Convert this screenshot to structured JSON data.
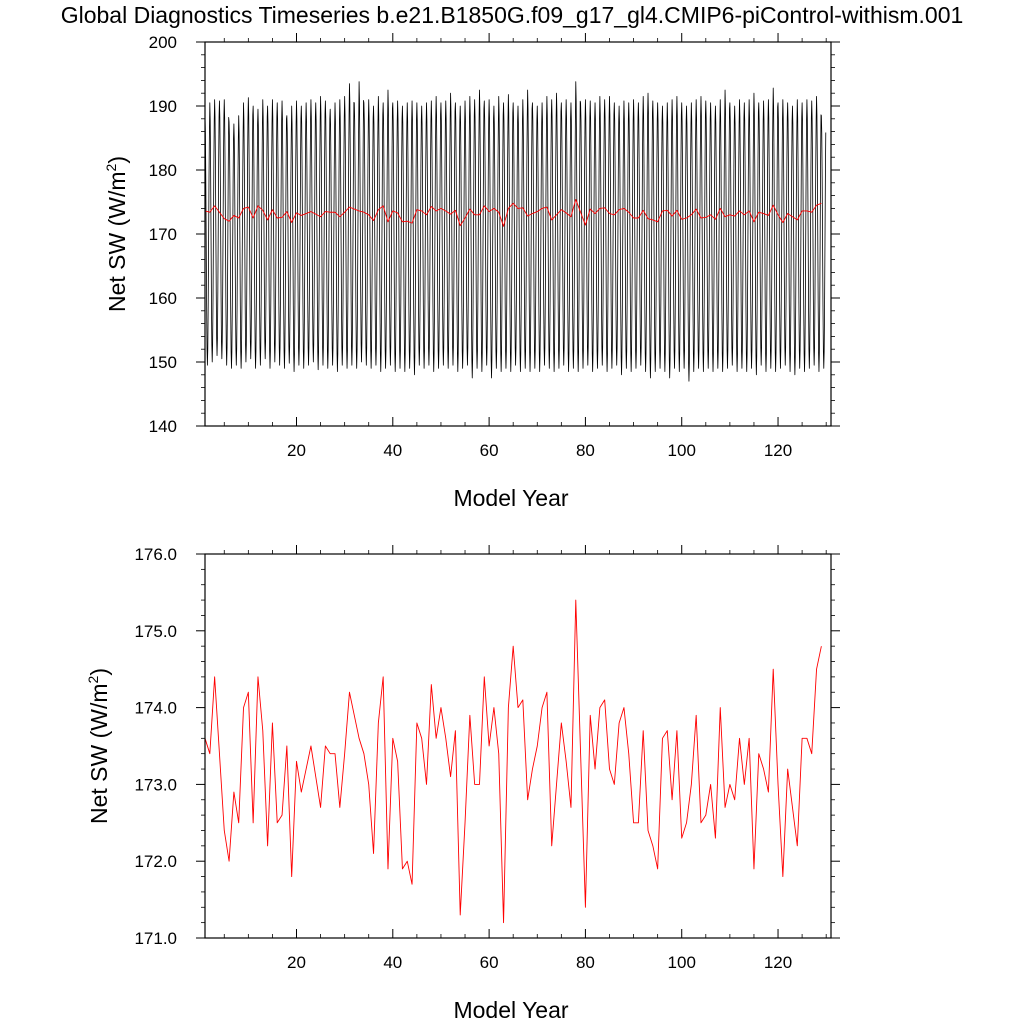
{
  "title": "Global Diagnostics Timeseries b.e21.B1850G.f09_g17_gl4.CMIP6-piControl-withism.001",
  "colors": {
    "monthly": "#000000",
    "annual": "#ff0000",
    "axis": "#000000"
  },
  "chart_data": [
    {
      "type": "line",
      "xlabel": "Model Year",
      "ylabel_main": "Net SW (W/m",
      "ylabel_sup": "2",
      "ylabel_close": ")",
      "xlim": [
        1,
        131
      ],
      "ylim": [
        140,
        200
      ],
      "xticks": [
        20,
        40,
        60,
        80,
        100,
        120
      ],
      "xtick_labels": [
        "20",
        "40",
        "60",
        "80",
        "100",
        "120"
      ],
      "yticks": [
        140,
        150,
        160,
        170,
        180,
        190,
        200
      ],
      "ytick_labels": [
        "140",
        "150",
        "160",
        "170",
        "180",
        "190",
        "200"
      ],
      "series": [
        {
          "kind": "monthly",
          "x_start": 1.0,
          "x_step": 0.0833333,
          "annual_peaks": [
            188.5,
            190.5,
            191.0,
            190.8,
            191.0,
            187.5,
            187.2,
            188.5,
            190.5,
            191.3,
            190.0,
            189.5,
            191.0,
            190.0,
            191.0,
            190.5,
            190.8,
            188.5,
            190.0,
            190.8,
            190.0,
            190.5,
            191.0,
            190.5,
            191.5,
            190.8,
            189.5,
            190.5,
            191.0,
            191.5,
            193.5,
            190.5,
            193.8,
            190.5,
            191.0,
            190.0,
            191.5,
            190.5,
            192.5,
            190.5,
            190.8,
            190.0,
            190.5,
            190.8,
            190.5,
            190.0,
            190.5,
            190.8,
            191.5,
            190.5,
            190.8,
            192.0,
            190.5,
            190.0,
            190.8,
            191.5,
            191.0,
            192.5,
            190.8,
            191.0,
            190.0,
            191.5,
            190.5,
            191.8,
            190.5,
            190.0,
            191.0,
            192.5,
            190.5,
            190.0,
            190.5,
            191.5,
            191.0,
            192.0,
            190.5,
            191.0,
            190.5,
            193.8,
            190.5,
            191.0,
            190.8,
            190.5,
            191.5,
            191.0,
            191.5,
            190.5,
            190.0,
            190.8,
            190.5,
            191.0,
            190.5,
            191.5,
            192.0,
            190.8,
            190.5,
            190.0,
            190.5,
            191.0,
            191.5,
            190.5,
            190.0,
            190.5,
            191.0,
            191.5,
            190.8,
            190.5,
            190.0,
            191.0,
            192.5,
            190.5,
            190.0,
            191.0,
            190.5,
            191.0,
            192.0,
            190.5,
            190.8,
            191.0,
            192.8,
            190.5,
            191.0,
            190.5,
            190.0,
            191.0,
            190.5,
            191.0,
            190.8,
            191.5,
            188.5
          ],
          "annual_troughs": [
            149.5,
            150.0,
            151.0,
            150.5,
            149.5,
            149.0,
            149.5,
            149.0,
            150.0,
            150.5,
            149.0,
            149.5,
            150.5,
            149.0,
            150.0,
            149.5,
            149.0,
            149.8,
            148.5,
            149.5,
            149.0,
            149.5,
            150.0,
            148.8,
            149.5,
            149.0,
            149.5,
            148.5,
            149.5,
            149.0,
            149.5,
            149.0,
            150.0,
            149.5,
            149.0,
            149.5,
            148.5,
            149.0,
            149.5,
            148.5,
            149.0,
            148.5,
            149.0,
            148.0,
            149.5,
            149.0,
            149.5,
            148.5,
            149.0,
            149.5,
            149.0,
            149.5,
            148.5,
            149.0,
            149.5,
            147.5,
            149.0,
            148.5,
            149.5,
            147.5,
            149.0,
            148.5,
            149.0,
            148.5,
            149.5,
            148.5,
            149.0,
            148.5,
            149.0,
            148.5,
            149.5,
            149.0,
            148.5,
            149.0,
            149.5,
            148.5,
            149.0,
            148.5,
            149.0,
            149.5,
            148.5,
            149.0,
            149.5,
            148.5,
            149.0,
            149.5,
            148.0,
            149.0,
            148.5,
            149.0,
            149.5,
            148.5,
            147.5,
            148.5,
            149.0,
            148.5,
            147.5,
            149.0,
            148.5,
            149.0,
            147.0,
            148.5,
            149.0,
            148.5,
            149.0,
            148.5,
            149.0,
            148.5,
            149.0,
            149.5,
            148.5,
            149.0,
            148.5,
            149.0,
            148.0,
            149.5,
            148.5,
            149.0,
            148.5,
            149.0,
            149.5,
            148.5,
            148.0,
            149.0,
            148.5,
            149.0,
            149.5,
            148.5,
            149.0,
            148.5,
            150.0
          ]
        },
        {
          "kind": "annual",
          "x_start": 1,
          "x_step": 1,
          "values": [
            173.6,
            173.4,
            174.4,
            173.4,
            172.4,
            172.0,
            172.9,
            172.5,
            174.0,
            174.2,
            172.5,
            174.4,
            173.7,
            172.2,
            173.8,
            172.5,
            172.6,
            173.5,
            171.8,
            173.3,
            172.9,
            173.2,
            173.5,
            173.1,
            172.7,
            173.5,
            173.4,
            173.4,
            172.7,
            173.4,
            174.2,
            173.9,
            173.6,
            173.4,
            173.0,
            172.1,
            173.8,
            174.4,
            171.9,
            173.6,
            173.3,
            171.9,
            172.0,
            171.7,
            173.8,
            173.6,
            173.0,
            174.3,
            173.6,
            174.0,
            173.6,
            173.1,
            173.7,
            171.3,
            172.5,
            173.9,
            173.0,
            173.0,
            174.4,
            173.5,
            174.0,
            173.4,
            171.2,
            174.0,
            174.8,
            174.0,
            174.1,
            172.8,
            173.2,
            173.5,
            174.0,
            174.2,
            172.2,
            173.0,
            173.8,
            173.3,
            172.7,
            175.4,
            173.4,
            171.4,
            173.9,
            173.2,
            174.0,
            174.1,
            173.2,
            173.0,
            173.8,
            174.0,
            173.4,
            172.5,
            172.5,
            173.7,
            172.4,
            172.2,
            171.9,
            173.6,
            173.7,
            172.8,
            173.7,
            172.3,
            172.5,
            173.0,
            173.9,
            172.5,
            172.6,
            173.0,
            172.3,
            174.0,
            172.7,
            173.0,
            172.8,
            173.6,
            173.0,
            173.6,
            171.9,
            173.4,
            173.2,
            172.9,
            174.5,
            173.0,
            171.8,
            173.2,
            172.7,
            172.2,
            173.6,
            173.6,
            173.4,
            174.5,
            174.8
          ]
        }
      ]
    },
    {
      "type": "line",
      "xlabel": "Model Year",
      "ylabel_main": "Net SW (W/m",
      "ylabel_sup": "2",
      "ylabel_close": ")",
      "xlim": [
        1,
        131
      ],
      "ylim": [
        171.0,
        176.0
      ],
      "xticks": [
        20,
        40,
        60,
        80,
        100,
        120
      ],
      "xtick_labels": [
        "20",
        "40",
        "60",
        "80",
        "100",
        "120"
      ],
      "yticks": [
        171,
        172,
        173,
        174,
        175,
        176
      ],
      "ytick_labels": [
        "171.0",
        "172.0",
        "173.0",
        "174.0",
        "175.0",
        "176.0"
      ],
      "series": [
        {
          "kind": "annual",
          "x_start": 1,
          "x_step": 1,
          "values": [
            173.6,
            173.4,
            174.4,
            173.4,
            172.4,
            172.0,
            172.9,
            172.5,
            174.0,
            174.2,
            172.5,
            174.4,
            173.7,
            172.2,
            173.8,
            172.5,
            172.6,
            173.5,
            171.8,
            173.3,
            172.9,
            173.2,
            173.5,
            173.1,
            172.7,
            173.5,
            173.4,
            173.4,
            172.7,
            173.4,
            174.2,
            173.9,
            173.6,
            173.4,
            173.0,
            172.1,
            173.8,
            174.4,
            171.9,
            173.6,
            173.3,
            171.9,
            172.0,
            171.7,
            173.8,
            173.6,
            173.0,
            174.3,
            173.6,
            174.0,
            173.6,
            173.1,
            173.7,
            171.3,
            172.5,
            173.9,
            173.0,
            173.0,
            174.4,
            173.5,
            174.0,
            173.4,
            171.2,
            174.0,
            174.8,
            174.0,
            174.1,
            172.8,
            173.2,
            173.5,
            174.0,
            174.2,
            172.2,
            173.0,
            173.8,
            173.3,
            172.7,
            175.4,
            173.4,
            171.4,
            173.9,
            173.2,
            174.0,
            174.1,
            173.2,
            173.0,
            173.8,
            174.0,
            173.4,
            172.5,
            172.5,
            173.7,
            172.4,
            172.2,
            171.9,
            173.6,
            173.7,
            172.8,
            173.7,
            172.3,
            172.5,
            173.0,
            173.9,
            172.5,
            172.6,
            173.0,
            172.3,
            174.0,
            172.7,
            173.0,
            172.8,
            173.6,
            173.0,
            173.6,
            171.9,
            173.4,
            173.2,
            172.9,
            174.5,
            173.0,
            171.8,
            173.2,
            172.7,
            172.2,
            173.6,
            173.6,
            173.4,
            174.5,
            174.8
          ]
        }
      ]
    }
  ]
}
